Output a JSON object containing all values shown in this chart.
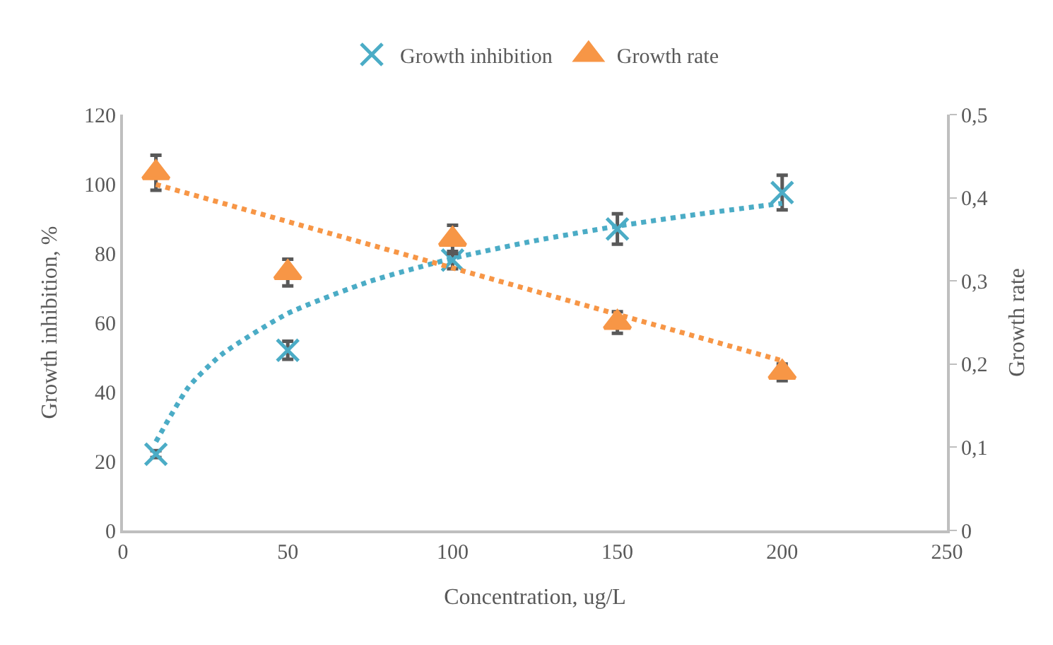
{
  "chart_data": {
    "type": "scatter",
    "xlabel": "Concentration, ug/L",
    "ylabel": "Growth inhibition, %",
    "y2label": "Growth rate",
    "xlim": [
      0,
      250
    ],
    "xticks": [
      0,
      50,
      100,
      150,
      200,
      250
    ],
    "ylim": [
      0,
      120
    ],
    "yticks": [
      0,
      20,
      40,
      60,
      80,
      100,
      120
    ],
    "y2lim": [
      0,
      0.5
    ],
    "y2ticks": [
      0,
      {
        "value": 0.1,
        "label": "0,1"
      },
      {
        "value": 0.2,
        "label": "0,2"
      },
      {
        "value": 0.3,
        "label": "0,3"
      },
      {
        "value": 0.4,
        "label": "0,4"
      },
      {
        "value": 0.5,
        "label": "0,5"
      }
    ],
    "legend": "top",
    "series": [
      {
        "name": "Growth inhibition",
        "marker": "cross",
        "color": "#4bacc6",
        "x": [
          10,
          50,
          100,
          150,
          200
        ],
        "values": [
          22,
          52,
          78,
          87,
          97.5
        ],
        "errors": [
          1,
          2.6,
          2.5,
          4.4,
          5
        ]
      },
      {
        "name": "Growth rate",
        "marker": "triangle",
        "axis": "y2",
        "color": "#f79646",
        "x": [
          10,
          50,
          100,
          150,
          200
        ],
        "values": [
          0.43,
          0.31,
          0.35,
          0.25,
          0.19
        ],
        "errors": [
          0.021,
          0.016,
          0.017,
          0.013,
          0.01
        ]
      },
      {
        "type": "line",
        "line_style": "dotted",
        "color": "#4bacc6",
        "x": [
          10,
          20,
          30,
          50,
          75,
          100,
          125,
          150,
          175,
          200
        ],
        "values": [
          25.6,
          41.5,
          50.8,
          62.6,
          71.9,
          78.5,
          83.6,
          87.8,
          91.3,
          94.4
        ]
      },
      {
        "type": "line",
        "line_style": "dotted",
        "axis": "y2",
        "color": "#f79646",
        "x": [
          10,
          200
        ],
        "values": [
          0.416,
          0.204
        ]
      }
    ]
  }
}
